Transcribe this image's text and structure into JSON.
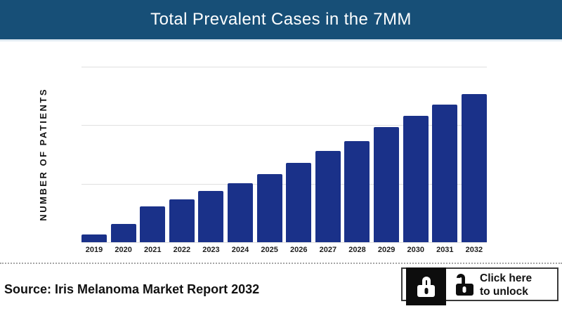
{
  "header": {
    "title": "Total Prevalent Cases in the 7MM",
    "bg_color": "#174F77",
    "text_color": "#FFFFFF"
  },
  "chart_data": {
    "type": "bar",
    "title": "Total Prevalent Cases in the 7MM",
    "categories": [
      "2019",
      "2020",
      "2021",
      "2022",
      "2023",
      "2024",
      "2025",
      "2026",
      "2027",
      "2028",
      "2029",
      "2030",
      "2031",
      "2032"
    ],
    "values_gridline_units": [
      0.13,
      0.31,
      0.61,
      0.73,
      0.88,
      1.01,
      1.16,
      1.36,
      1.56,
      1.73,
      1.97,
      2.16,
      2.35,
      2.53
    ],
    "y_axis_max_gridline_units": 3,
    "y_tick_labels_visible": false,
    "note": "Y-axis numeric values are hidden in the source image; values are bar heights measured in units of the evenly spaced horizontal gridlines.",
    "xlabel": "",
    "ylabel": "NUMBER OF PATIENTS",
    "legend": "none",
    "grid": "3 horizontal gridlines plus baseline, light gray",
    "bar_color": "#1A3189",
    "trend": "monotonic increase from 2019 to 2032"
  },
  "footer": {
    "source_text": "Source: Iris Melanoma Market Report 2032",
    "unlock": {
      "line1": "Click here",
      "line2": "to unlock",
      "locked_icon": "lock-closed-icon",
      "unlocked_icon": "lock-open-icon"
    }
  }
}
